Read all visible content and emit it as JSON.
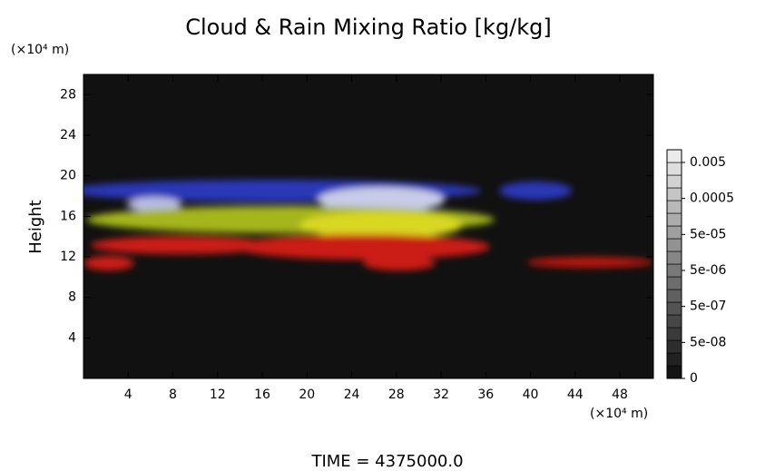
{
  "chart_data": {
    "type": "volume-render",
    "title": "Cloud & Rain Mixing Ratio [kg/kg]",
    "y_unit": "(×10⁴ m)",
    "x_unit": "(×10⁴ m)",
    "y_label": "Height",
    "footer": "TIME = 4375000.0",
    "xlim": [
      0,
      51
    ],
    "xticks": [
      4,
      8,
      12,
      16,
      20,
      24,
      28,
      32,
      36,
      40,
      44,
      48
    ],
    "ylim": [
      0,
      30
    ],
    "yticks": [
      4,
      8,
      12,
      16,
      20,
      24,
      28
    ],
    "colorbar_ticks": [
      {
        "value": 0,
        "label": "0"
      },
      {
        "value": 5e-08,
        "label": "5e-08"
      },
      {
        "value": 5e-07,
        "label": "5e-07"
      },
      {
        "value": 5e-06,
        "label": "5e-06"
      },
      {
        "value": 5e-05,
        "label": "5e-05"
      },
      {
        "value": 0.0005,
        "label": "0.0005"
      },
      {
        "value": 0.005,
        "label": "0.005"
      }
    ]
  }
}
